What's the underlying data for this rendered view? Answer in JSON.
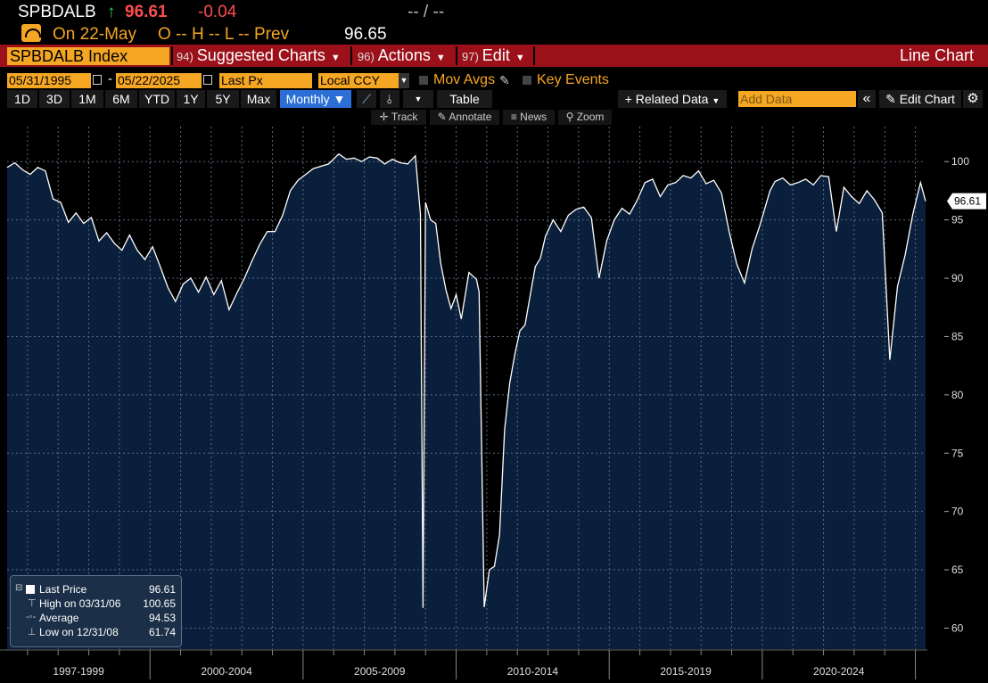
{
  "header": {
    "ticker": "SPBDALB",
    "up_arrow": "↑",
    "last": "96.61",
    "change": "-0.04",
    "bid_ask": "-- / --",
    "on_date": "On 22-May",
    "ohlc": "O -- H -- L -- Prev",
    "prev": "96.65"
  },
  "menubar": {
    "security": "SPBDALB Index",
    "items": [
      {
        "num": "94)",
        "label": "Suggested Charts"
      },
      {
        "num": "96)",
        "label": "Actions"
      },
      {
        "num": "97)",
        "label": "Edit"
      }
    ],
    "chart_type": "Line Chart"
  },
  "controls": {
    "start_date": "05/31/1995",
    "dash": "-",
    "end_date": "05/22/2025",
    "field": "Last Px",
    "currency": "Local CCY",
    "mov_avgs": "Mov Avgs",
    "key_events": "Key Events"
  },
  "ranges": [
    "1D",
    "3D",
    "1M",
    "6M",
    "YTD",
    "1Y",
    "5Y",
    "Max"
  ],
  "period": "Monthly ▼",
  "table_label": "Table",
  "related_data": "+ Related Data",
  "add_data_placeholder": "Add Data",
  "edit_chart": "Edit Chart",
  "tools": [
    "Track",
    "Annotate",
    "News",
    "Zoom"
  ],
  "legend": {
    "items": [
      {
        "label": "Last Price",
        "value": "96.61"
      },
      {
        "label": "High on 03/31/06",
        "value": "100.65"
      },
      {
        "label": "Average",
        "value": "94.53"
      },
      {
        "label": "Low on 12/31/08",
        "value": "61.74"
      }
    ]
  },
  "chart_data": {
    "type": "area",
    "title": "",
    "xlabel": "",
    "ylabel": "",
    "x_range": [
      "1995-05",
      "2025-05"
    ],
    "ylim": [
      58.2,
      103.0
    ],
    "y_ticks": [
      60,
      65,
      70,
      75,
      80,
      85,
      90,
      95,
      100
    ],
    "x_tick_labels": [
      "1997-1999",
      "2000-2004",
      "2005-2009",
      "2010-2014",
      "2015-2019",
      "2020-2024"
    ],
    "last_value_label": "96.61",
    "grid": true,
    "series": [
      {
        "color": "#ffffff",
        "fill": "#0a1f3b",
        "points": [
          [
            "1995-05",
            99.5
          ],
          [
            "1995-08",
            99.9
          ],
          [
            "1995-11",
            99.3
          ],
          [
            "1996-02",
            98.9
          ],
          [
            "1996-05",
            99.5
          ],
          [
            "1996-08",
            99.2
          ],
          [
            "1996-11",
            96.8
          ],
          [
            "1997-02",
            96.5
          ],
          [
            "1997-05",
            94.8
          ],
          [
            "1997-08",
            95.6
          ],
          [
            "1997-11",
            94.7
          ],
          [
            "1998-02",
            95.2
          ],
          [
            "1998-05",
            93.2
          ],
          [
            "1998-08",
            93.9
          ],
          [
            "1998-11",
            93.0
          ],
          [
            "1999-02",
            92.4
          ],
          [
            "1999-05",
            93.7
          ],
          [
            "1999-08",
            92.4
          ],
          [
            "1999-11",
            91.6
          ],
          [
            "2000-02",
            92.7
          ],
          [
            "2000-05",
            91.0
          ],
          [
            "2000-08",
            89.2
          ],
          [
            "2000-11",
            88.0
          ],
          [
            "2001-02",
            89.5
          ],
          [
            "2001-05",
            90.0
          ],
          [
            "2001-08",
            88.8
          ],
          [
            "2001-11",
            90.1
          ],
          [
            "2002-02",
            88.6
          ],
          [
            "2002-05",
            89.8
          ],
          [
            "2002-08",
            87.3
          ],
          [
            "2002-11",
            88.7
          ],
          [
            "2003-02",
            90.0
          ],
          [
            "2003-05",
            91.5
          ],
          [
            "2003-08",
            92.9
          ],
          [
            "2003-11",
            94.0
          ],
          [
            "2004-02",
            94.0
          ],
          [
            "2004-05",
            95.4
          ],
          [
            "2004-08",
            97.5
          ],
          [
            "2004-11",
            98.4
          ],
          [
            "2005-02",
            98.9
          ],
          [
            "2005-05",
            99.4
          ],
          [
            "2005-08",
            99.6
          ],
          [
            "2005-11",
            99.8
          ],
          [
            "2006-03",
            100.65
          ],
          [
            "2006-06",
            100.2
          ],
          [
            "2006-09",
            100.3
          ],
          [
            "2006-12",
            100.0
          ],
          [
            "2007-03",
            100.4
          ],
          [
            "2007-06",
            100.3
          ],
          [
            "2007-09",
            99.8
          ],
          [
            "2007-12",
            100.2
          ],
          [
            "2008-03",
            99.9
          ],
          [
            "2008-06",
            99.8
          ],
          [
            "2008-09",
            100.5
          ],
          [
            "2008-11",
            95.5
          ],
          [
            "2008-12",
            61.74
          ],
          [
            "2009-01",
            96.5
          ],
          [
            "2009-03",
            95.0
          ],
          [
            "2009-05",
            94.7
          ],
          [
            "2009-07",
            91.2
          ],
          [
            "2009-09",
            89.0
          ],
          [
            "2009-11",
            87.4
          ],
          [
            "2010-01",
            88.6
          ],
          [
            "2010-03",
            86.5
          ],
          [
            "2010-06",
            90.5
          ],
          [
            "2010-09",
            89.9
          ],
          [
            "2010-10",
            88.8
          ],
          [
            "2010-12",
            61.8
          ],
          [
            "2011-02",
            65.0
          ],
          [
            "2011-04",
            65.3
          ],
          [
            "2011-06",
            68.0
          ],
          [
            "2011-08",
            77.0
          ],
          [
            "2011-10",
            81.0
          ],
          [
            "2011-12",
            83.5
          ],
          [
            "2012-02",
            85.5
          ],
          [
            "2012-04",
            86.0
          ],
          [
            "2012-06",
            88.5
          ],
          [
            "2012-08",
            91.0
          ],
          [
            "2012-10",
            91.7
          ],
          [
            "2012-12",
            93.6
          ],
          [
            "2013-03",
            95.0
          ],
          [
            "2013-06",
            94.0
          ],
          [
            "2013-09",
            95.4
          ],
          [
            "2013-12",
            95.9
          ],
          [
            "2014-03",
            96.1
          ],
          [
            "2014-06",
            95.2
          ],
          [
            "2014-09",
            90.0
          ],
          [
            "2014-12",
            93.2
          ],
          [
            "2015-03",
            95.0
          ],
          [
            "2015-06",
            96.0
          ],
          [
            "2015-09",
            95.5
          ],
          [
            "2015-12",
            96.7
          ],
          [
            "2016-03",
            98.2
          ],
          [
            "2016-06",
            98.5
          ],
          [
            "2016-09",
            97.0
          ],
          [
            "2016-12",
            98.0
          ],
          [
            "2017-03",
            98.2
          ],
          [
            "2017-06",
            98.8
          ],
          [
            "2017-09",
            98.6
          ],
          [
            "2017-12",
            99.2
          ],
          [
            "2018-03",
            98.1
          ],
          [
            "2018-06",
            98.4
          ],
          [
            "2018-09",
            97.3
          ],
          [
            "2018-12",
            94.0
          ],
          [
            "2019-03",
            91.2
          ],
          [
            "2019-06",
            89.6
          ],
          [
            "2019-09",
            92.5
          ],
          [
            "2019-12",
            94.5
          ],
          [
            "2020-02",
            96.0
          ],
          [
            "2020-04",
            97.5
          ],
          [
            "2020-06",
            98.3
          ],
          [
            "2020-09",
            98.6
          ],
          [
            "2020-12",
            98.0
          ],
          [
            "2021-03",
            98.2
          ],
          [
            "2021-06",
            98.5
          ],
          [
            "2021-09",
            98.0
          ],
          [
            "2021-12",
            98.8
          ],
          [
            "2022-03",
            98.7
          ],
          [
            "2022-06",
            94.0
          ],
          [
            "2022-09",
            97.8
          ],
          [
            "2022-12",
            97.0
          ],
          [
            "2023-03",
            96.4
          ],
          [
            "2023-06",
            97.5
          ],
          [
            "2023-09",
            96.7
          ],
          [
            "2023-12",
            95.6
          ],
          [
            "2024-03",
            83.0
          ],
          [
            "2024-06",
            89.3
          ],
          [
            "2024-09",
            92.0
          ],
          [
            "2024-12",
            95.5
          ],
          [
            "2025-03",
            98.2
          ],
          [
            "2025-05",
            96.61
          ]
        ]
      }
    ]
  }
}
